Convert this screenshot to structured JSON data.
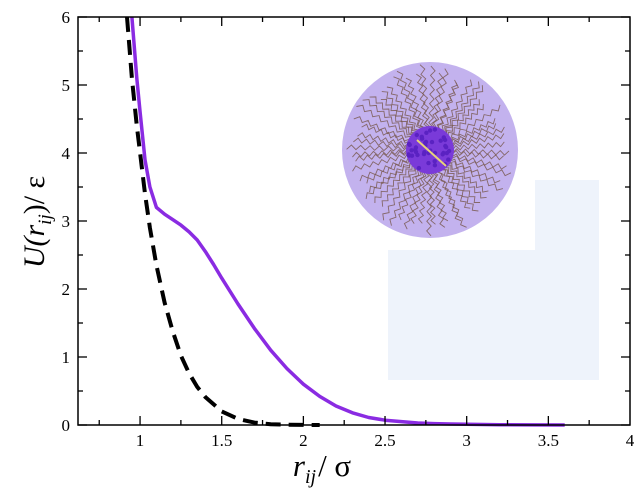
{
  "chart_data": {
    "type": "line",
    "xlabel": {
      "main": "r",
      "sub": "ij",
      "rest": "/ σ"
    },
    "ylabel": {
      "a": "U(r",
      "sub": "ij",
      "b": ")/ ε"
    },
    "xlim": [
      0.62,
      4.0
    ],
    "ylim": [
      0,
      6
    ],
    "xticks": [
      "1",
      "1.5",
      "2",
      "2.5",
      "3",
      "3.5",
      "4"
    ],
    "yticks": [
      "0",
      "1",
      "2",
      "3",
      "4",
      "5",
      "6"
    ],
    "grid": false,
    "legend": "none",
    "series": [
      {
        "style": "solid",
        "color": "#8a2be2",
        "x": [
          0.95,
          0.98,
          1.0,
          1.03,
          1.06,
          1.1,
          1.15,
          1.2,
          1.25,
          1.3,
          1.35,
          1.4,
          1.45,
          1.5,
          1.6,
          1.7,
          1.8,
          1.9,
          2.0,
          2.1,
          2.2,
          2.3,
          2.4,
          2.5,
          2.6,
          2.7,
          2.8,
          2.9,
          3.0,
          3.2,
          3.4,
          3.6
        ],
        "y": [
          6.0,
          5.1,
          4.6,
          3.9,
          3.5,
          3.2,
          3.1,
          3.02,
          2.94,
          2.84,
          2.72,
          2.55,
          2.36,
          2.16,
          1.78,
          1.42,
          1.1,
          0.83,
          0.6,
          0.42,
          0.28,
          0.18,
          0.11,
          0.07,
          0.05,
          0.03,
          0.02,
          0.015,
          0.01,
          0.005,
          0.002,
          0.0
        ]
      },
      {
        "style": "dashed",
        "color": "#000000",
        "x": [
          0.92,
          0.95,
          0.98,
          1.0,
          1.03,
          1.06,
          1.1,
          1.15,
          1.2,
          1.25,
          1.3,
          1.35,
          1.4,
          1.5,
          1.6,
          1.7,
          1.8,
          1.9,
          2.0,
          2.1
        ],
        "y": [
          6.0,
          5.1,
          4.4,
          4.0,
          3.4,
          2.9,
          2.35,
          1.8,
          1.38,
          1.02,
          0.76,
          0.56,
          0.41,
          0.2,
          0.09,
          0.035,
          0.012,
          0.004,
          0.001,
          0.0
        ]
      }
    ]
  },
  "inset": {
    "icon": "micelle-illustration",
    "disk_color": "#c3b2ee",
    "core_color": "#7a3ad9",
    "chain_color": "#7a5a52",
    "panel_color": "#eef3fb"
  }
}
